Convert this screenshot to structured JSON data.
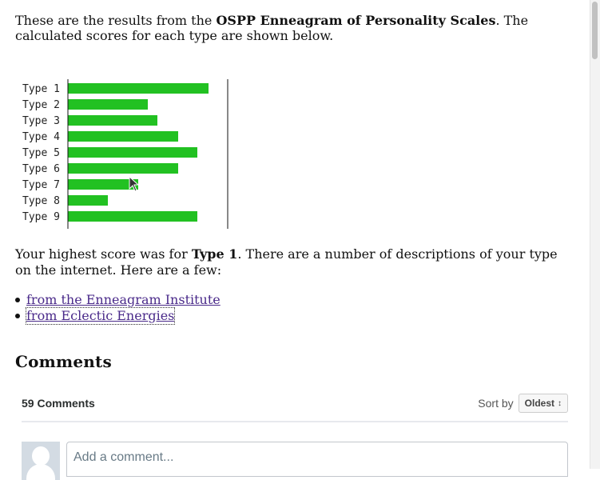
{
  "intro": {
    "before": "These are the results from the ",
    "bold": "OSPP Enneagram of Personality Scales",
    "after": ". The calculated scores for each type are shown below."
  },
  "chart_data": {
    "type": "bar",
    "orientation": "horizontal",
    "categories": [
      "Type 1",
      "Type 2",
      "Type 3",
      "Type 4",
      "Type 5",
      "Type 6",
      "Type 7",
      "Type 8",
      "Type 9"
    ],
    "values": [
      88,
      50,
      56,
      69,
      81,
      69,
      44,
      25,
      81
    ],
    "xlim": [
      0,
      100
    ],
    "title": "",
    "xlabel": "",
    "ylabel": "",
    "grid": false,
    "bar_color": "#22c122"
  },
  "summary": {
    "before": "Your highest score was for ",
    "bold": "Type 1",
    "after": ". There are a number of descriptions of your type on the internet. Here are a few:"
  },
  "links": [
    {
      "label": "from the Enneagram Institute"
    },
    {
      "label": "from Eclectic Energies"
    }
  ],
  "comments": {
    "heading": "Comments",
    "count_label": "59 Comments",
    "sort_label": "Sort by",
    "sort_value": "Oldest",
    "sort_arrow": "↕",
    "placeholder": "Add a comment..."
  },
  "colors": {
    "link": "#4a2a8a",
    "bar": "#22c122"
  }
}
